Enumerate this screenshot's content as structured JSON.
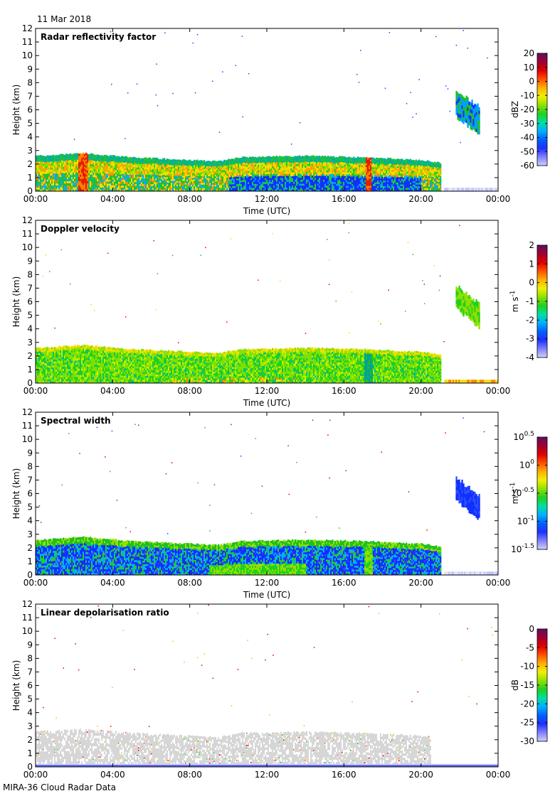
{
  "header": {
    "date": "11 Mar 2018"
  },
  "footer": {
    "text": "MIRA-36 Cloud Radar Data"
  },
  "chart_data": [
    {
      "type": "heatmap",
      "title": "Radar reflectivity factor",
      "xlabel": "Time (UTC)",
      "ylabel": "Height (km)",
      "x_ticks": [
        "00:00",
        "04:00",
        "08:00",
        "12:00",
        "16:00",
        "20:00",
        "00:00"
      ],
      "xlim_hours": [
        0,
        24
      ],
      "ylim": [
        0,
        12
      ],
      "y_ticks": [
        0,
        1,
        2,
        3,
        4,
        5,
        6,
        7,
        8,
        9,
        10,
        11,
        12
      ],
      "colorbar": {
        "label": "dBZ",
        "ticks": [
          "20",
          "10",
          "0",
          "-10",
          "-20",
          "-30",
          "-40",
          "-50",
          "-60"
        ],
        "range": [
          -60,
          20
        ]
      },
      "cloud_top_km": [
        [
          0,
          2.6
        ],
        [
          2.5,
          2.8
        ],
        [
          5,
          2.5
        ],
        [
          8,
          2.3
        ],
        [
          9.5,
          2.2
        ],
        [
          10.5,
          2.5
        ],
        [
          14,
          2.6
        ],
        [
          17,
          2.5
        ],
        [
          20,
          2.3
        ],
        [
          21,
          2.1
        ]
      ],
      "upper_cloud": {
        "start_hour": 21.8,
        "end_hour": 23.0,
        "base_km": 4.1,
        "top_km": 7.3
      },
      "bands": "reflectivity"
    },
    {
      "type": "heatmap",
      "title": "Doppler velocity",
      "xlabel": "Time (UTC)",
      "ylabel": "Height (km)",
      "x_ticks": [
        "00:00",
        "04:00",
        "08:00",
        "12:00",
        "16:00",
        "20:00",
        "00:00"
      ],
      "xlim_hours": [
        0,
        24
      ],
      "ylim": [
        0,
        12
      ],
      "y_ticks": [
        0,
        1,
        2,
        3,
        4,
        5,
        6,
        7,
        8,
        9,
        10,
        11,
        12
      ],
      "colorbar": {
        "label": "m s⁻¹",
        "ticks": [
          "2",
          "1",
          "0",
          "-1",
          "-2",
          "-3",
          "-4"
        ],
        "range": [
          -4,
          2
        ]
      },
      "cloud_top_km": [
        [
          0,
          2.6
        ],
        [
          2.5,
          2.8
        ],
        [
          5,
          2.5
        ],
        [
          8,
          2.3
        ],
        [
          9.5,
          2.2
        ],
        [
          10.5,
          2.5
        ],
        [
          14,
          2.6
        ],
        [
          17,
          2.5
        ],
        [
          20,
          2.3
        ],
        [
          21,
          2.1
        ]
      ],
      "upper_cloud": {
        "start_hour": 21.8,
        "end_hour": 23.0,
        "base_km": 4.1,
        "top_km": 7.0
      },
      "bands": "velocity"
    },
    {
      "type": "heatmap",
      "title": "Spectral width",
      "xlabel": "Time (UTC)",
      "ylabel": "Height (km)",
      "x_ticks": [
        "00:00",
        "04:00",
        "08:00",
        "12:00",
        "16:00",
        "20:00",
        "00:00"
      ],
      "xlim_hours": [
        0,
        24
      ],
      "ylim": [
        0,
        12
      ],
      "y_ticks": [
        0,
        1,
        2,
        3,
        4,
        5,
        6,
        7,
        8,
        9,
        10,
        11,
        12
      ],
      "colorbar": {
        "label": "m s⁻¹",
        "ticks": [
          "10^0.5",
          "10^0",
          "10^-0.5",
          "10^-1",
          "10^-1.5"
        ],
        "range_log10": [
          -1.5,
          0.5
        ]
      },
      "cloud_top_km": [
        [
          0,
          2.6
        ],
        [
          2.5,
          2.8
        ],
        [
          5,
          2.5
        ],
        [
          8,
          2.3
        ],
        [
          9.5,
          2.2
        ],
        [
          10.5,
          2.5
        ],
        [
          14,
          2.6
        ],
        [
          17,
          2.5
        ],
        [
          20,
          2.3
        ],
        [
          21,
          2.1
        ]
      ],
      "upper_cloud": {
        "start_hour": 21.8,
        "end_hour": 23.0,
        "base_km": 4.1,
        "top_km": 7.0
      },
      "bands": "width"
    },
    {
      "type": "heatmap",
      "title": "Linear depolarisation ratio",
      "xlabel": "Time (UTC)",
      "ylabel": "Height (km)",
      "x_ticks": [
        "00:00",
        "04:00",
        "08:00",
        "12:00",
        "16:00",
        "20:00",
        "00:00"
      ],
      "xlim_hours": [
        0,
        24
      ],
      "ylim": [
        0,
        12
      ],
      "y_ticks": [
        0,
        1,
        2,
        3,
        4,
        5,
        6,
        7,
        8,
        9,
        10,
        11,
        12
      ],
      "colorbar": {
        "label": "dB",
        "ticks": [
          "0",
          "-5",
          "-10",
          "-15",
          "-20",
          "-25",
          "-30"
        ],
        "range": [
          -30,
          0
        ]
      },
      "cloud_top_km": [
        [
          0,
          2.6
        ],
        [
          2.5,
          2.8
        ],
        [
          5,
          2.5
        ],
        [
          8,
          2.3
        ],
        [
          9.5,
          2.2
        ],
        [
          10.5,
          2.5
        ],
        [
          14,
          2.6
        ],
        [
          17,
          2.5
        ],
        [
          20,
          2.3
        ],
        [
          21,
          2.1
        ]
      ],
      "bands": "ldr"
    }
  ]
}
